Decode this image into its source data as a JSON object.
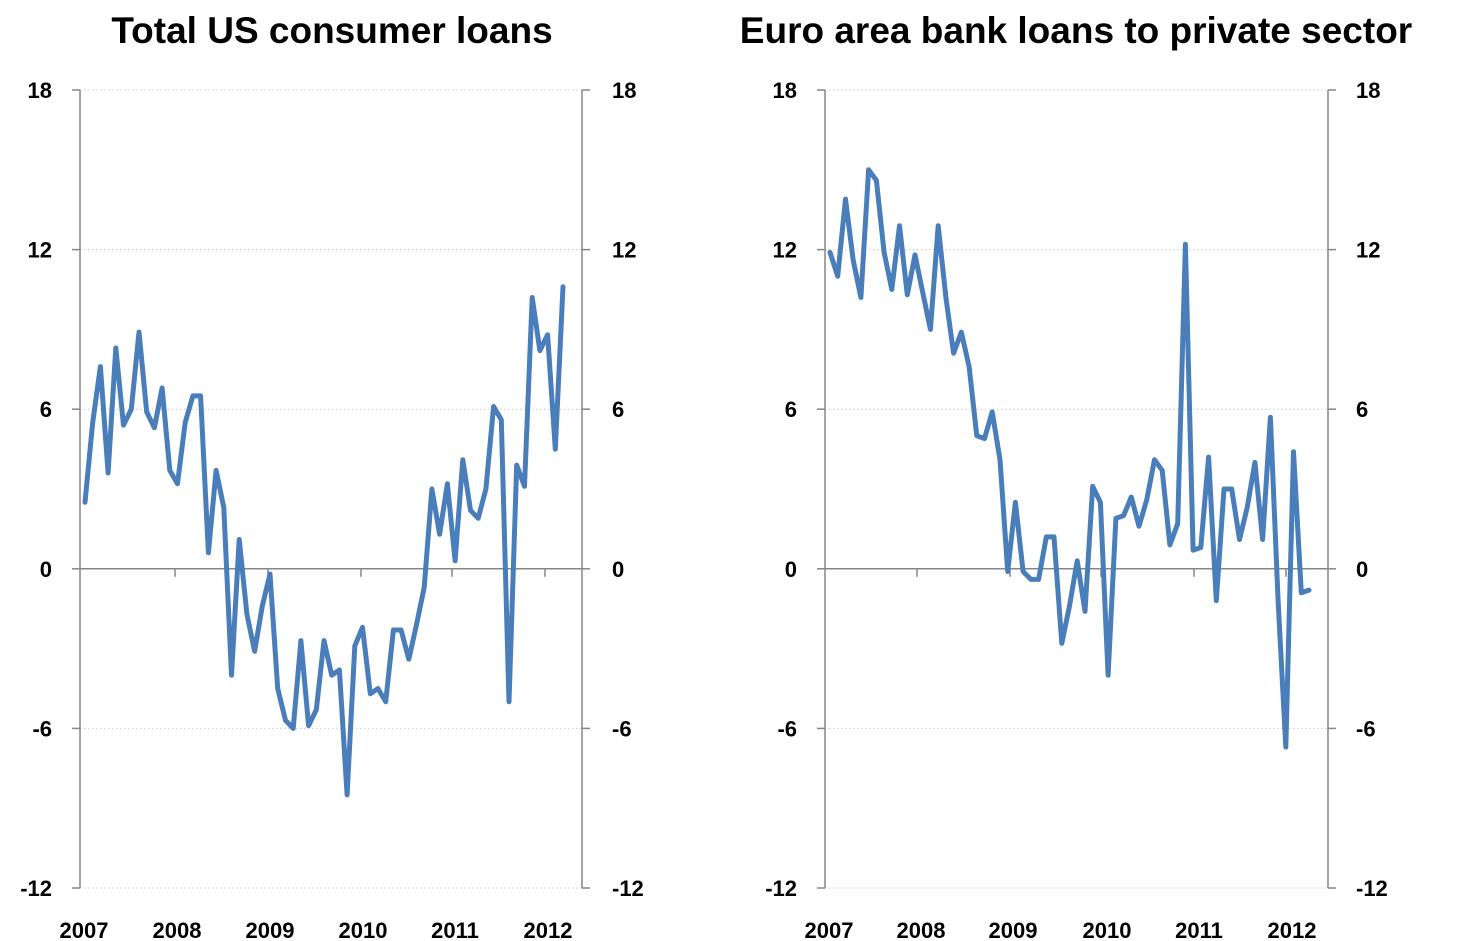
{
  "colors": {
    "line": "#4a7ebb",
    "axis": "#868686",
    "grid": "#c8c8c8",
    "text": "#000000"
  },
  "chart_data": [
    {
      "type": "line",
      "title": "Total US consumer loans",
      "x_tick_labels": [
        "2007",
        "2008",
        "2009",
        "2010",
        "2011",
        "2012"
      ],
      "y_tick_labels": [
        "18",
        "12",
        "6",
        "0",
        "-6",
        "-12"
      ],
      "ylim": [
        -12,
        18
      ],
      "grid": "horizontal dotted",
      "secondary_y_axis": "mirrors primary",
      "legend": "none",
      "series": [
        {
          "values": [
            2.5,
            5.5,
            7.6,
            3.6,
            8.3,
            5.4,
            6.0,
            8.9,
            5.9,
            5.3,
            6.8,
            3.7,
            3.2,
            5.5,
            6.5,
            6.5,
            0.6,
            3.7,
            2.3,
            -4.0,
            1.1,
            -1.7,
            -3.1,
            -1.4,
            -0.2,
            -4.5,
            -5.7,
            -6.0,
            -2.7,
            -5.9,
            -5.3,
            -2.7,
            -4.0,
            -3.8,
            -8.5,
            -2.9,
            -2.2,
            -4.7,
            -4.5,
            -5.0,
            -2.3,
            -2.3,
            -3.4,
            -2.1,
            -0.7,
            3.0,
            1.3,
            3.2,
            0.3,
            4.1,
            2.2,
            1.9,
            3.0,
            6.1,
            5.6,
            -5.0,
            3.9,
            3.1,
            10.2,
            8.2,
            8.8,
            4.5,
            10.6
          ]
        }
      ]
    },
    {
      "type": "line",
      "title": "Euro area bank loans to private sector",
      "x_tick_labels": [
        "2007",
        "2008",
        "2009",
        "2010",
        "2011",
        "2012"
      ],
      "y_tick_labels": [
        "18",
        "12",
        "6",
        "0",
        "-6",
        "-12"
      ],
      "ylim": [
        -12,
        18
      ],
      "grid": "horizontal dotted",
      "secondary_y_axis": "mirrors primary",
      "legend": "none",
      "series": [
        {
          "values": [
            11.9,
            11.0,
            13.9,
            11.6,
            10.2,
            15.0,
            14.6,
            11.9,
            10.5,
            12.9,
            10.3,
            11.8,
            10.4,
            9.0,
            12.9,
            10.2,
            8.1,
            8.9,
            7.6,
            5.0,
            4.9,
            5.9,
            4.1,
            -0.1,
            2.5,
            -0.1,
            -0.4,
            -0.4,
            1.2,
            1.2,
            -2.8,
            -1.4,
            0.3,
            -1.6,
            3.1,
            2.5,
            -4.0,
            1.9,
            2.0,
            2.7,
            1.6,
            2.6,
            4.1,
            3.7,
            0.9,
            1.7,
            12.2,
            0.7,
            0.8,
            4.2,
            -1.2,
            3.0,
            3.0,
            1.1,
            2.3,
            4.0,
            1.1,
            5.7,
            -1.2,
            -6.7,
            4.4,
            -0.9,
            -0.8
          ]
        }
      ]
    }
  ]
}
